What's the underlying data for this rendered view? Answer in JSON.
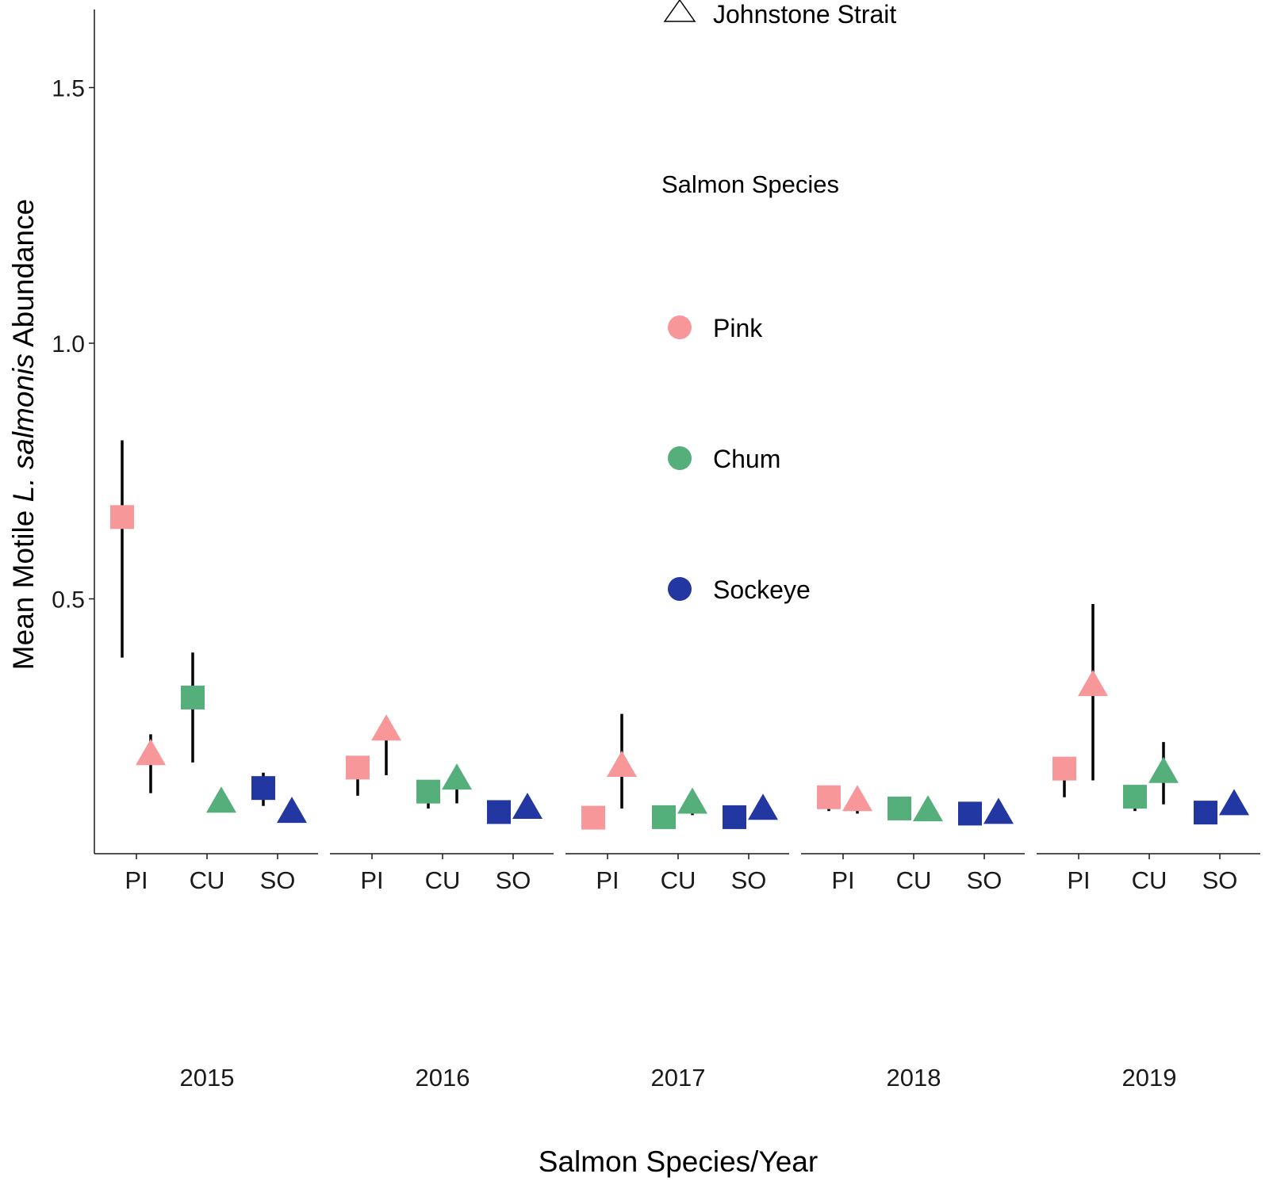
{
  "chart_data": {
    "type": "scatter",
    "xlabel": "Salmon Species/Year",
    "ylabel_prefix": "Mean Motile ",
    "ylabel_italic": "L. salmonis",
    "ylabel_suffix": " Abundance",
    "ylim": [
      0,
      1.65
    ],
    "yticks": [
      "0.5",
      "1.0",
      "1.5"
    ],
    "ytick_values": [
      0.5,
      1.0,
      1.5
    ],
    "years": [
      "2015",
      "2016",
      "2017",
      "2018",
      "2019"
    ],
    "species_codes": [
      "PI",
      "CU",
      "SO"
    ],
    "legend": {
      "placement": "top-right",
      "region_title": "",
      "region_entries": [
        {
          "label": "Johnstone Strait",
          "shape": "triangle"
        }
      ],
      "species_title": "Salmon Species",
      "species_entries": [
        {
          "label": "Pink",
          "color": "#F8979A"
        },
        {
          "label": "Chum",
          "color": "#55AF7A"
        },
        {
          "label": "Sockeye",
          "color": "#2337A3"
        }
      ]
    },
    "points": [
      {
        "year": "2015",
        "species": "PI",
        "region": "square",
        "value": 0.66,
        "lower": 0.385,
        "upper": 0.81
      },
      {
        "year": "2015",
        "species": "PI",
        "region": "triangle",
        "value": 0.195,
        "lower": 0.12,
        "upper": 0.235
      },
      {
        "year": "2015",
        "species": "CU",
        "region": "square",
        "value": 0.307,
        "lower": 0.18,
        "upper": 0.395
      },
      {
        "year": "2015",
        "species": "CU",
        "region": "triangle",
        "value": 0.102,
        "lower": 0.085,
        "upper": 0.11
      },
      {
        "year": "2015",
        "species": "SO",
        "region": "square",
        "value": 0.13,
        "lower": 0.095,
        "upper": 0.16
      },
      {
        "year": "2015",
        "species": "SO",
        "region": "triangle",
        "value": 0.082,
        "lower": 0.075,
        "upper": 0.088
      },
      {
        "year": "2016",
        "species": "PI",
        "region": "square",
        "value": 0.17,
        "lower": 0.115,
        "upper": 0.18
      },
      {
        "year": "2016",
        "species": "PI",
        "region": "triangle",
        "value": 0.243,
        "lower": 0.155,
        "upper": 0.255
      },
      {
        "year": "2016",
        "species": "CU",
        "region": "square",
        "value": 0.123,
        "lower": 0.09,
        "upper": 0.135
      },
      {
        "year": "2016",
        "species": "CU",
        "region": "triangle",
        "value": 0.147,
        "lower": 0.1,
        "upper": 0.155
      },
      {
        "year": "2016",
        "species": "SO",
        "region": "square",
        "value": 0.083,
        "lower": 0.07,
        "upper": 0.09
      },
      {
        "year": "2016",
        "species": "SO",
        "region": "triangle",
        "value": 0.09,
        "lower": 0.08,
        "upper": 0.098
      },
      {
        "year": "2017",
        "species": "PI",
        "region": "square",
        "value": 0.072,
        "lower": 0.065,
        "upper": 0.078
      },
      {
        "year": "2017",
        "species": "PI",
        "region": "triangle",
        "value": 0.172,
        "lower": 0.09,
        "upper": 0.275
      },
      {
        "year": "2017",
        "species": "CU",
        "region": "square",
        "value": 0.073,
        "lower": 0.065,
        "upper": 0.078
      },
      {
        "year": "2017",
        "species": "CU",
        "region": "triangle",
        "value": 0.1,
        "lower": 0.077,
        "upper": 0.108
      },
      {
        "year": "2017",
        "species": "SO",
        "region": "square",
        "value": 0.073,
        "lower": 0.065,
        "upper": 0.078
      },
      {
        "year": "2017",
        "species": "SO",
        "region": "triangle",
        "value": 0.088,
        "lower": 0.08,
        "upper": 0.094
      },
      {
        "year": "2018",
        "species": "PI",
        "region": "square",
        "value": 0.112,
        "lower": 0.085,
        "upper": 0.117
      },
      {
        "year": "2018",
        "species": "PI",
        "region": "triangle",
        "value": 0.105,
        "lower": 0.08,
        "upper": 0.11
      },
      {
        "year": "2018",
        "species": "CU",
        "region": "square",
        "value": 0.09,
        "lower": 0.082,
        "upper": 0.095
      },
      {
        "year": "2018",
        "species": "CU",
        "region": "triangle",
        "value": 0.085,
        "lower": 0.078,
        "upper": 0.09
      },
      {
        "year": "2018",
        "species": "SO",
        "region": "square",
        "value": 0.08,
        "lower": 0.072,
        "upper": 0.085
      },
      {
        "year": "2018",
        "species": "SO",
        "region": "triangle",
        "value": 0.08,
        "lower": 0.073,
        "upper": 0.085
      },
      {
        "year": "2019",
        "species": "PI",
        "region": "square",
        "value": 0.168,
        "lower": 0.112,
        "upper": 0.175
      },
      {
        "year": "2019",
        "species": "PI",
        "region": "triangle",
        "value": 0.33,
        "lower": 0.145,
        "upper": 0.49
      },
      {
        "year": "2019",
        "species": "CU",
        "region": "square",
        "value": 0.113,
        "lower": 0.085,
        "upper": 0.12
      },
      {
        "year": "2019",
        "species": "CU",
        "region": "triangle",
        "value": 0.16,
        "lower": 0.098,
        "upper": 0.22
      },
      {
        "year": "2019",
        "species": "SO",
        "region": "square",
        "value": 0.082,
        "lower": 0.072,
        "upper": 0.088
      },
      {
        "year": "2019",
        "species": "SO",
        "region": "triangle",
        "value": 0.097,
        "lower": 0.085,
        "upper": 0.103
      }
    ]
  }
}
